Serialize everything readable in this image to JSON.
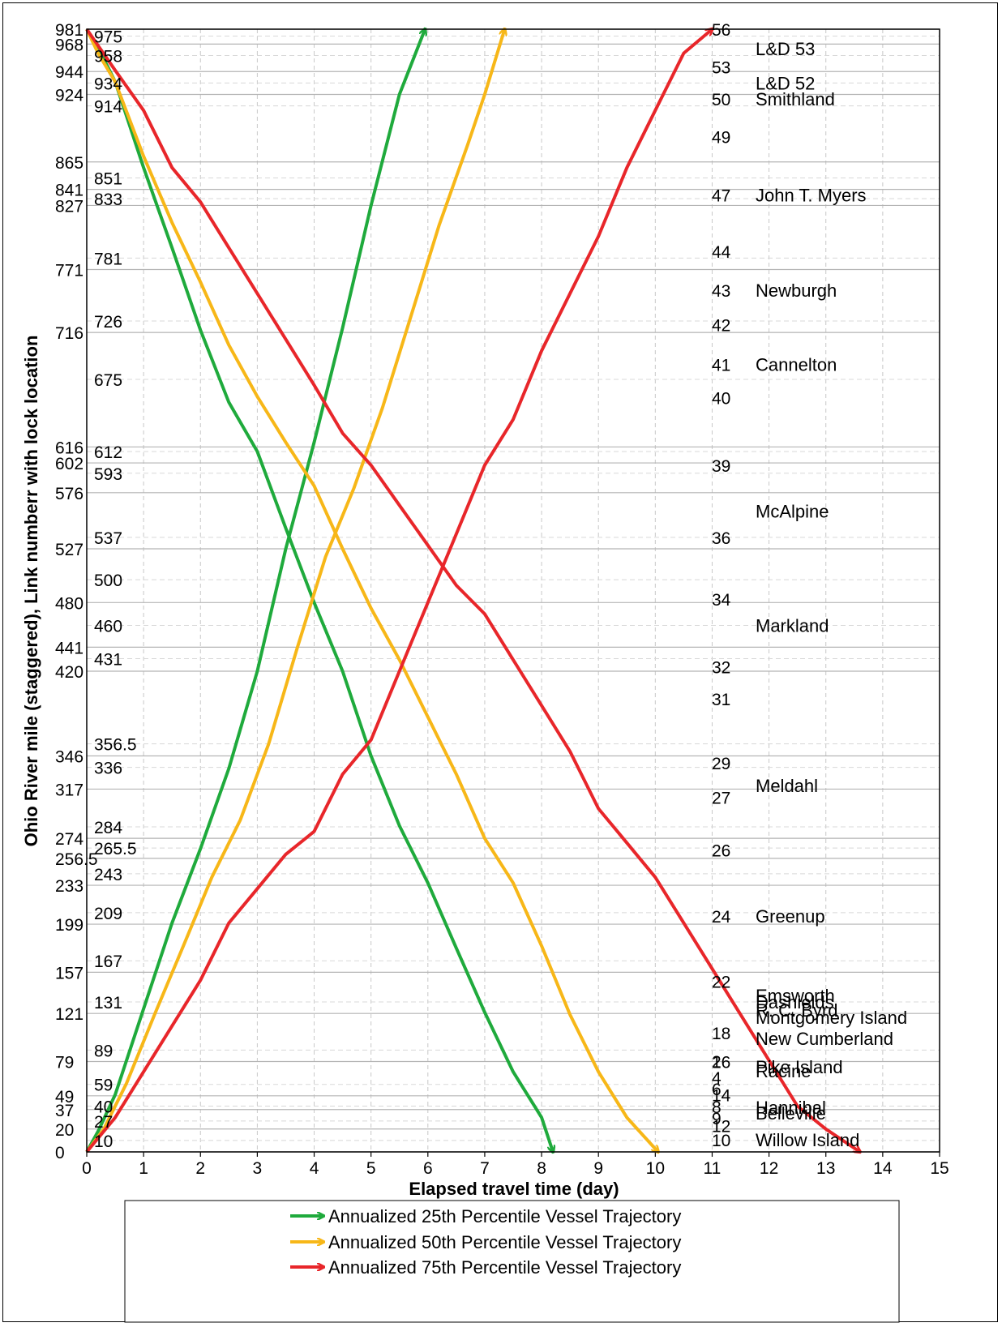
{
  "chart_data": {
    "type": "line",
    "xlabel": "Elapsed travel time (day)",
    "ylabel": "Ohio River mile (staggered),  Link numberr  with lock location",
    "xlim": [
      0,
      15
    ],
    "ylim": [
      0,
      981
    ],
    "grid": true,
    "legend_position": "bottom",
    "x_ticks": [
      "0",
      "1",
      "2",
      "3",
      "4",
      "5",
      "6",
      "7",
      "8",
      "9",
      "10",
      "11",
      "12",
      "13",
      "14",
      "15"
    ],
    "left_ticks_outer": [
      {
        "label": "981",
        "value": 981
      },
      {
        "label": "968",
        "value": 968
      },
      {
        "label": "944",
        "value": 944
      },
      {
        "label": "924",
        "value": 924
      },
      {
        "label": "865",
        "value": 865
      },
      {
        "label": "841",
        "value": 841
      },
      {
        "label": "827",
        "value": 827
      },
      {
        "label": "771",
        "value": 771
      },
      {
        "label": "716",
        "value": 716
      },
      {
        "label": "616",
        "value": 616
      },
      {
        "label": "602",
        "value": 602
      },
      {
        "label": "576",
        "value": 576
      },
      {
        "label": "527",
        "value": 527
      },
      {
        "label": "480",
        "value": 480
      },
      {
        "label": "441",
        "value": 441
      },
      {
        "label": "420",
        "value": 420
      },
      {
        "label": "346",
        "value": 346
      },
      {
        "label": "317",
        "value": 317
      },
      {
        "label": "274",
        "value": 274
      },
      {
        "label": "256.5",
        "value": 256.5
      },
      {
        "label": "233",
        "value": 233
      },
      {
        "label": "199",
        "value": 199
      },
      {
        "label": "157",
        "value": 157
      },
      {
        "label": "121",
        "value": 121
      },
      {
        "label": "79",
        "value": 79
      },
      {
        "label": "49",
        "value": 49
      },
      {
        "label": "37",
        "value": 37
      },
      {
        "label": "20",
        "value": 20
      },
      {
        "label": "0",
        "value": 0
      }
    ],
    "left_ticks_inner": [
      {
        "label": "975",
        "value": 975
      },
      {
        "label": "958",
        "value": 958
      },
      {
        "label": "934",
        "value": 934
      },
      {
        "label": "914",
        "value": 914
      },
      {
        "label": "851",
        "value": 851
      },
      {
        "label": "833",
        "value": 833
      },
      {
        "label": "781",
        "value": 781
      },
      {
        "label": "726",
        "value": 726
      },
      {
        "label": "675",
        "value": 675
      },
      {
        "label": "612",
        "value": 612
      },
      {
        "label": "593",
        "value": 593
      },
      {
        "label": "537",
        "value": 537
      },
      {
        "label": "500",
        "value": 500
      },
      {
        "label": "460",
        "value": 460
      },
      {
        "label": "431",
        "value": 431
      },
      {
        "label": "356.5",
        "value": 356.5
      },
      {
        "label": "336",
        "value": 336
      },
      {
        "label": "284",
        "value": 284
      },
      {
        "label": "265.5",
        "value": 265.5
      },
      {
        "label": "243",
        "value": 243
      },
      {
        "label": "209",
        "value": 209
      },
      {
        "label": "167",
        "value": 167
      },
      {
        "label": "131",
        "value": 131
      },
      {
        "label": "89",
        "value": 89
      },
      {
        "label": "59",
        "value": 59
      },
      {
        "label": "40",
        "value": 40
      },
      {
        "label": "27",
        "value": 27
      },
      {
        "label": "10",
        "value": 10
      }
    ],
    "link_numbers": [
      {
        "label": "56",
        "value": 981
      },
      {
        "label": "53",
        "value": 948
      },
      {
        "label": "50",
        "value": 920
      },
      {
        "label": "49",
        "value": 887
      },
      {
        "label": "47",
        "value": 836
      },
      {
        "label": "44",
        "value": 787
      },
      {
        "label": "43",
        "value": 753
      },
      {
        "label": "42",
        "value": 723
      },
      {
        "label": "41",
        "value": 688
      },
      {
        "label": "40",
        "value": 659
      },
      {
        "label": "39",
        "value": 600
      },
      {
        "label": "36",
        "value": 537
      },
      {
        "label": "34",
        "value": 483
      },
      {
        "label": "32",
        "value": 424
      },
      {
        "label": "31",
        "value": 396
      },
      {
        "label": "29",
        "value": 340
      },
      {
        "label": "27",
        "value": 310
      },
      {
        "label": "26",
        "value": 264
      },
      {
        "label": "24",
        "value": 206
      },
      {
        "label": "22",
        "value": 149
      },
      {
        "label": "18",
        "value": 104
      },
      {
        "label": "16",
        "value": 79
      },
      {
        "label": "14",
        "value": 50
      },
      {
        "label": "12",
        "value": 23
      },
      {
        "label": "10",
        "value": -15
      },
      {
        "label": "9",
        "value": -42
      },
      {
        "label": "8",
        "value": -56
      },
      {
        "label": "6",
        "value": -78
      },
      {
        "label": "4",
        "value": -92
      },
      {
        "label": "2",
        "value": -112
      }
    ],
    "lock_names": [
      {
        "label": "L&D 53",
        "value": 964
      },
      {
        "label": "L&D 52",
        "value": 934
      },
      {
        "label": "Smithland",
        "value": 920
      },
      {
        "label": "John T. Myers",
        "value": 836
      },
      {
        "label": "Newburgh",
        "value": 753
      },
      {
        "label": "Cannelton",
        "value": 688
      },
      {
        "label": "McAlpine",
        "value": 560
      },
      {
        "label": "Markland",
        "value": 460
      },
      {
        "label": "Meldahl",
        "value": 320
      },
      {
        "label": "Greenup",
        "value": 206
      },
      {
        "label": "R. C. Byrd",
        "value": 124
      },
      {
        "label": "Racine",
        "value": 71
      },
      {
        "label": "Belleville",
        "value": 34
      },
      {
        "label": "Willow Island",
        "value": -15
      },
      {
        "label": "Hannibal",
        "value": -55
      },
      {
        "label": "Pike Island",
        "value": -105
      },
      {
        "label": "New Cumberland",
        "value": -140
      },
      {
        "label": "Montgomery Island",
        "value": -166
      },
      {
        "label": "Dashields",
        "value": -185
      },
      {
        "label": "Emsworth",
        "value": -193
      }
    ],
    "series": [
      {
        "name": "Annualized 25th Percentile Vessel Trajectory",
        "color": "#1faa3c",
        "down": {
          "x": [
            0,
            0.2,
            0.5,
            1.0,
            1.5,
            2.0,
            2.5,
            3.0,
            3.5,
            4.0,
            4.5,
            5.0,
            5.5,
            6.0,
            6.5,
            7.0,
            7.5,
            8.0,
            8.2
          ],
          "y": [
            981,
            965,
            935,
            860,
            790,
            718,
            655,
            612,
            545,
            480,
            420,
            346,
            285,
            235,
            178,
            122,
            70,
            30,
            0
          ]
        },
        "up": {
          "x": [
            0,
            0.2,
            0.5,
            1.0,
            1.5,
            2.0,
            2.5,
            3.0,
            3.5,
            4.0,
            4.5,
            5.0,
            5.5,
            5.95
          ],
          "y": [
            0,
            18,
            50,
            125,
            200,
            265,
            335,
            420,
            527,
            620,
            720,
            827,
            924,
            981
          ]
        }
      },
      {
        "name": "Annualized 50th Percentile Vessel Trajectory",
        "color": "#f7b718",
        "down": {
          "x": [
            0,
            0.2,
            0.5,
            1.0,
            1.5,
            2.0,
            2.5,
            3.0,
            3.5,
            4.0,
            4.5,
            5.0,
            5.5,
            6.0,
            6.5,
            7.0,
            7.5,
            8.0,
            8.5,
            9.0,
            9.5,
            10.05
          ],
          "y": [
            981,
            960,
            935,
            870,
            812,
            760,
            705,
            660,
            620,
            582,
            527,
            475,
            430,
            380,
            330,
            274,
            235,
            180,
            120,
            70,
            30,
            0
          ]
        },
        "up": {
          "x": [
            0,
            0.3,
            0.7,
            1.2,
            1.7,
            2.2,
            2.7,
            3.2,
            3.7,
            4.2,
            4.7,
            5.2,
            5.7,
            6.2,
            6.7,
            7.0,
            7.35
          ],
          "y": [
            0,
            20,
            60,
            121,
            180,
            240,
            290,
            356.5,
            440,
            520,
            580,
            650,
            730,
            810,
            880,
            924,
            981
          ]
        }
      },
      {
        "name": "Annualized 75th Percentile Vessel Trajectory",
        "color": "#e8262a",
        "down": {
          "x": [
            0,
            0.5,
            1.0,
            1.5,
            2.0,
            2.5,
            3.0,
            3.5,
            4.0,
            4.5,
            5.0,
            5.5,
            6.0,
            6.5,
            7.0,
            7.5,
            8.0,
            8.5,
            9.0,
            9.5,
            10.0,
            10.5,
            11.0,
            11.5,
            12.0,
            12.5,
            13.0,
            13.6
          ],
          "y": [
            981,
            945,
            910,
            860,
            830,
            790,
            750,
            710,
            670,
            628,
            600,
            565,
            530,
            495,
            470,
            430,
            390,
            350,
            300,
            270,
            240,
            200,
            160,
            120,
            80,
            40,
            20,
            0
          ]
        },
        "up": {
          "x": [
            0,
            0.5,
            1.0,
            1.5,
            2.0,
            2.5,
            3.0,
            3.5,
            4.0,
            4.5,
            5.0,
            5.5,
            6.0,
            6.5,
            7.0,
            7.5,
            8.0,
            8.5,
            9.0,
            9.5,
            10.0,
            10.5,
            11.0
          ],
          "y": [
            0,
            30,
            70,
            110,
            150,
            200,
            230,
            260,
            280,
            330,
            360,
            420,
            480,
            540,
            600,
            640,
            700,
            750,
            800,
            860,
            910,
            960,
            981
          ]
        }
      }
    ]
  }
}
